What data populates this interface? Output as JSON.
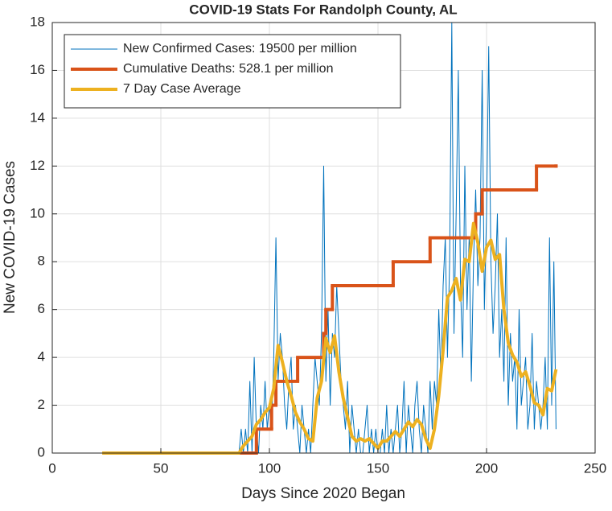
{
  "chart_data": {
    "type": "line",
    "title": "COVID-19 Stats For Randolph County, AL",
    "xlabel": "Days Since 2020 Began",
    "ylabel": "New COVID-19 Cases",
    "xlim": [
      0,
      250
    ],
    "xticks": [
      0,
      50,
      100,
      150,
      200,
      250
    ],
    "ylim": [
      0,
      18
    ],
    "yticks": [
      0,
      2,
      4,
      6,
      8,
      10,
      12,
      14,
      16,
      18
    ],
    "grid": true,
    "legend": "upper left",
    "series": [
      {
        "name": "New Confirmed Cases: 19500 per million",
        "color": "#0072BD",
        "width": 1,
        "step": false,
        "x": [
          23,
          24,
          25,
          26,
          27,
          28,
          29,
          30,
          31,
          32,
          33,
          34,
          35,
          36,
          37,
          38,
          39,
          40,
          41,
          42,
          43,
          44,
          45,
          46,
          47,
          48,
          49,
          50,
          51,
          52,
          53,
          54,
          55,
          56,
          57,
          58,
          59,
          60,
          61,
          62,
          63,
          64,
          65,
          66,
          67,
          68,
          69,
          70,
          71,
          72,
          73,
          74,
          75,
          76,
          77,
          78,
          79,
          80,
          81,
          82,
          83,
          84,
          85,
          86,
          87,
          88,
          89,
          90,
          91,
          92,
          93,
          94,
          95,
          96,
          97,
          98,
          99,
          100,
          101,
          102,
          103,
          104,
          105,
          106,
          107,
          108,
          109,
          110,
          111,
          112,
          113,
          114,
          115,
          116,
          117,
          118,
          119,
          120,
          121,
          122,
          123,
          124,
          125,
          126,
          127,
          128,
          129,
          130,
          131,
          132,
          133,
          134,
          135,
          136,
          137,
          138,
          139,
          140,
          141,
          142,
          143,
          144,
          145,
          146,
          147,
          148,
          149,
          150,
          151,
          152,
          153,
          154,
          155,
          156,
          157,
          158,
          159,
          160,
          161,
          162,
          163,
          164,
          165,
          166,
          167,
          168,
          169,
          170,
          171,
          172,
          173,
          174,
          175,
          176,
          177,
          178,
          179,
          180,
          181,
          182,
          183,
          184,
          185,
          186,
          187,
          188,
          189,
          190,
          191,
          192,
          193,
          194,
          195,
          196,
          197,
          198,
          199,
          200,
          201,
          202,
          203,
          204,
          205,
          206,
          207,
          208,
          209,
          210,
          211,
          212,
          213,
          214,
          215,
          216,
          217,
          218,
          219,
          220,
          221,
          222,
          223,
          224,
          225,
          226,
          227,
          228,
          229,
          230,
          231,
          232
        ],
        "values": [
          0,
          0,
          0,
          0,
          0,
          0,
          0,
          0,
          0,
          0,
          0,
          0,
          0,
          0,
          0,
          0,
          0,
          0,
          0,
          0,
          0,
          0,
          0,
          0,
          0,
          0,
          0,
          0,
          0,
          0,
          0,
          0,
          0,
          0,
          0,
          0,
          0,
          0,
          0,
          0,
          0,
          0,
          0,
          0,
          0,
          0,
          0,
          0,
          0,
          0,
          0,
          0,
          0,
          0,
          0,
          0,
          0,
          0,
          0,
          0,
          0,
          0,
          0,
          0,
          1,
          0,
          1,
          0,
          3,
          0,
          4,
          1,
          0,
          2,
          1,
          3,
          1,
          2,
          1,
          4,
          9,
          3,
          5,
          4,
          2,
          1,
          3,
          4,
          1,
          2,
          1,
          0,
          2,
          1,
          0,
          1,
          0,
          2,
          4,
          3,
          2,
          5,
          12,
          3,
          6,
          2,
          5,
          4,
          7,
          5,
          3,
          2,
          1,
          3,
          0,
          2,
          1,
          0,
          1,
          0,
          0,
          1,
          2,
          0,
          1,
          0,
          1,
          0,
          0,
          1,
          0,
          2,
          0,
          1,
          0,
          1,
          2,
          0,
          1,
          3,
          0,
          2,
          1,
          0,
          2,
          3,
          1,
          0,
          2,
          1,
          0,
          3,
          1,
          3,
          2,
          6,
          3,
          7,
          9,
          4,
          8,
          18,
          5,
          10,
          16,
          7,
          4,
          12,
          6,
          9,
          3,
          8,
          11,
          7,
          9,
          16,
          6,
          10,
          17,
          8,
          5,
          7,
          10,
          4,
          6,
          3,
          9,
          2,
          5,
          3,
          4,
          1,
          6,
          2,
          3,
          4,
          1,
          2,
          5,
          1,
          3,
          2,
          1,
          2,
          4,
          1,
          9,
          2,
          8,
          1
        ]
      },
      {
        "name": "Cumulative Deaths: 528.1 per million",
        "color": "#D95319",
        "width": 4,
        "step": true,
        "x": [
          86,
          94,
          101,
          103,
          113,
          125,
          126,
          129,
          157,
          174,
          195,
          198,
          223,
          232
        ],
        "values": [
          0,
          1,
          2,
          3,
          4,
          5,
          6,
          7,
          8,
          9,
          10,
          11,
          12,
          12
        ]
      },
      {
        "name": "7 Day Case Average",
        "color": "#EDB120",
        "width": 4,
        "step": false,
        "x": [
          23,
          86,
          88,
          90,
          92,
          94,
          96,
          98,
          100,
          102,
          104,
          106,
          108,
          110,
          112,
          114,
          116,
          118,
          120,
          122,
          124,
          126,
          128,
          130,
          132,
          134,
          136,
          138,
          140,
          142,
          144,
          146,
          148,
          150,
          152,
          154,
          156,
          158,
          160,
          162,
          164,
          166,
          168,
          170,
          172,
          174,
          176,
          178,
          180,
          182,
          184,
          186,
          188,
          190,
          192,
          194,
          196,
          198,
          200,
          202,
          204,
          206,
          208,
          210,
          212,
          214,
          216,
          218,
          220,
          222,
          224,
          226,
          228,
          230,
          232
        ],
        "values": [
          0,
          0,
          0.3,
          0.5,
          0.7,
          1.2,
          1.4,
          1.7,
          1.9,
          2.7,
          4.5,
          3.8,
          3.0,
          2.4,
          1.7,
          1.3,
          1.0,
          0.6,
          0.5,
          2.3,
          3.0,
          4.8,
          4.2,
          4.9,
          3.4,
          2.3,
          1.5,
          0.7,
          0.5,
          0.6,
          0.5,
          0.6,
          0.4,
          0.2,
          0.5,
          0.5,
          0.7,
          0.9,
          0.7,
          1.0,
          1.3,
          1.1,
          1.4,
          1.2,
          0.6,
          0.2,
          1.0,
          2.4,
          4.3,
          6.5,
          6.8,
          7.3,
          6.4,
          8.1,
          8.0,
          9.6,
          8.8,
          7.6,
          8.6,
          8.9,
          8.1,
          8.3,
          6.0,
          4.6,
          4.1,
          3.8,
          3.2,
          3.4,
          2.8,
          2.1,
          2.0,
          1.6,
          2.7,
          2.6,
          3.5
        ]
      }
    ]
  }
}
